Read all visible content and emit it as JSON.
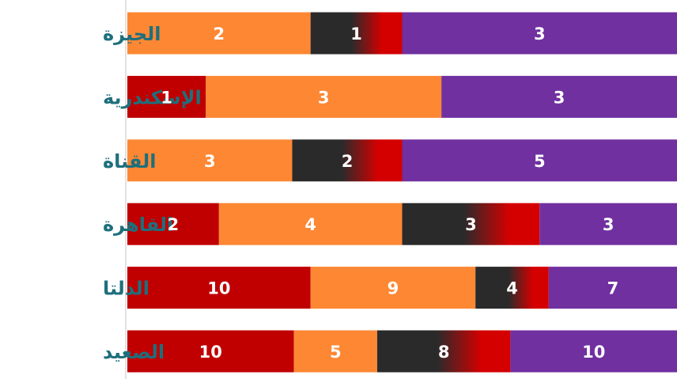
{
  "chart_data": {
    "type": "bar",
    "orientation": "horizontal",
    "stacked": true,
    "categories": [
      "الجيزة",
      "الإسكندرية",
      "القناة",
      "القاهرة",
      "الدلتا",
      "الصعيد"
    ],
    "series": [
      {
        "values": [
          0,
          1,
          0,
          2,
          10,
          10
        ],
        "color": "#c00000"
      },
      {
        "values": [
          2,
          3,
          3,
          4,
          9,
          5
        ],
        "color": "#fd8733"
      },
      {
        "values": [
          1,
          0,
          2,
          3,
          4,
          8
        ],
        "color": "#2b2a2b",
        "gradient_to": "#d40000"
      },
      {
        "values": [
          3,
          3,
          5,
          3,
          7,
          10
        ],
        "color": "#7030a0"
      }
    ],
    "normalized": true,
    "legend": "none",
    "grid": false
  }
}
